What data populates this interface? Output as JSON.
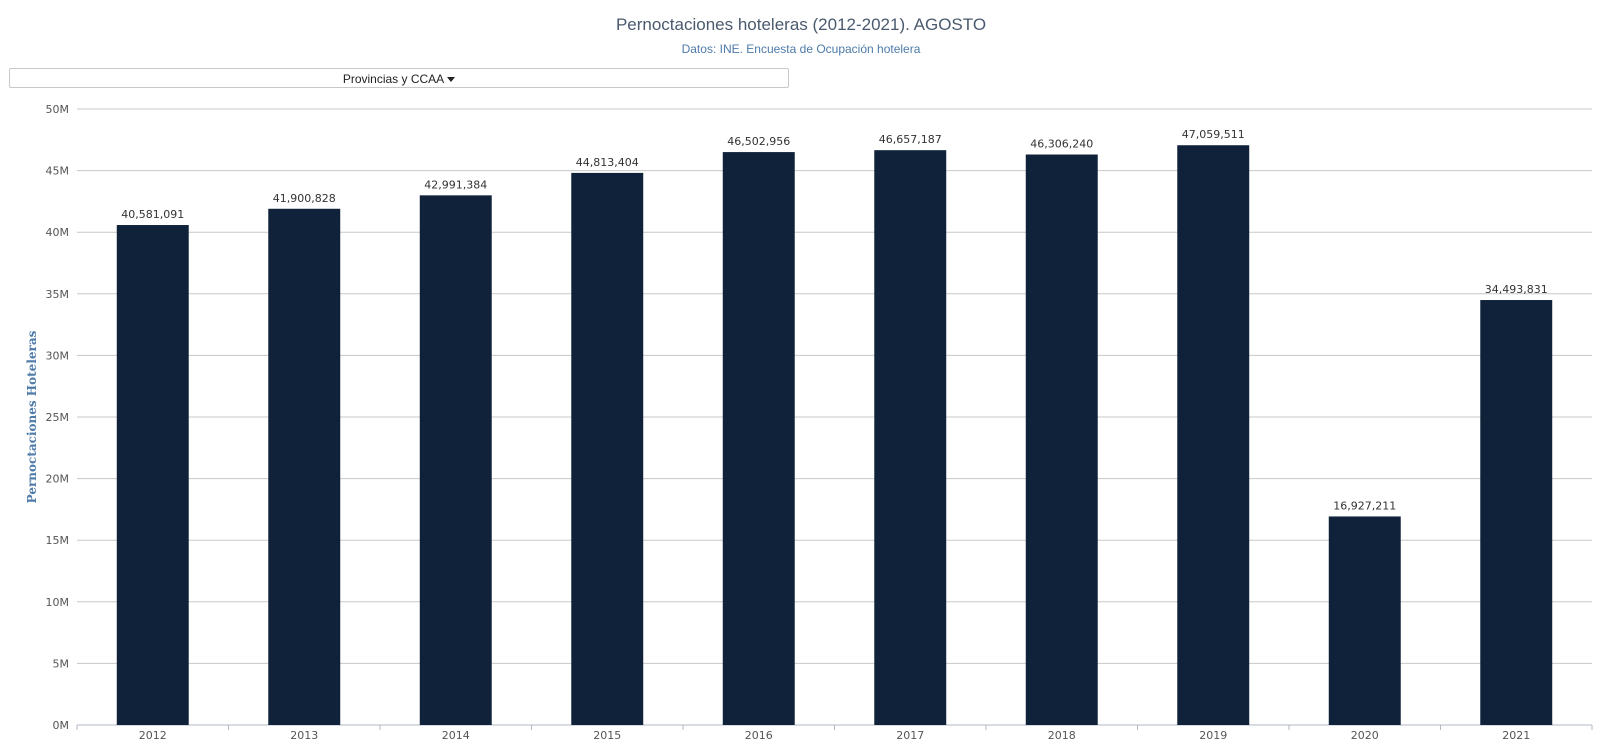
{
  "header": {
    "title": "Pernoctaciones hoteleras (2012-2021). AGOSTO",
    "subtitle": "Datos: INE. Encuesta de Ocupación hotelera"
  },
  "filter": {
    "label": "Provincias y CCAA"
  },
  "chart_data": {
    "type": "bar",
    "title": "Pernoctaciones hoteleras (2012-2021). AGOSTO",
    "subtitle": "Datos: INE. Encuesta de Ocupación hotelera",
    "xlabel": "",
    "ylabel": "Pernoctaciones Hoteleras",
    "categories": [
      "2012",
      "2013",
      "2014",
      "2015",
      "2016",
      "2017",
      "2018",
      "2019",
      "2020",
      "2021"
    ],
    "values": [
      40581091,
      41900828,
      42991384,
      44813404,
      46502956,
      46657187,
      46306240,
      47059511,
      16927211,
      34493831
    ],
    "data_labels": [
      "40,581,091",
      "41,900,828",
      "42,991,384",
      "44,813,404",
      "46,502,956",
      "46,657,187",
      "46,306,240",
      "47,059,511",
      "16,927,211",
      "34,493,831"
    ],
    "ylim": [
      0,
      50000000
    ],
    "yticks": [
      "0M",
      "5M",
      "10M",
      "15M",
      "20M",
      "25M",
      "30M",
      "35M",
      "40M",
      "45M",
      "50M"
    ],
    "grid": true,
    "bar_color": "#0f2239",
    "grid_color": "#c8c8c8"
  }
}
